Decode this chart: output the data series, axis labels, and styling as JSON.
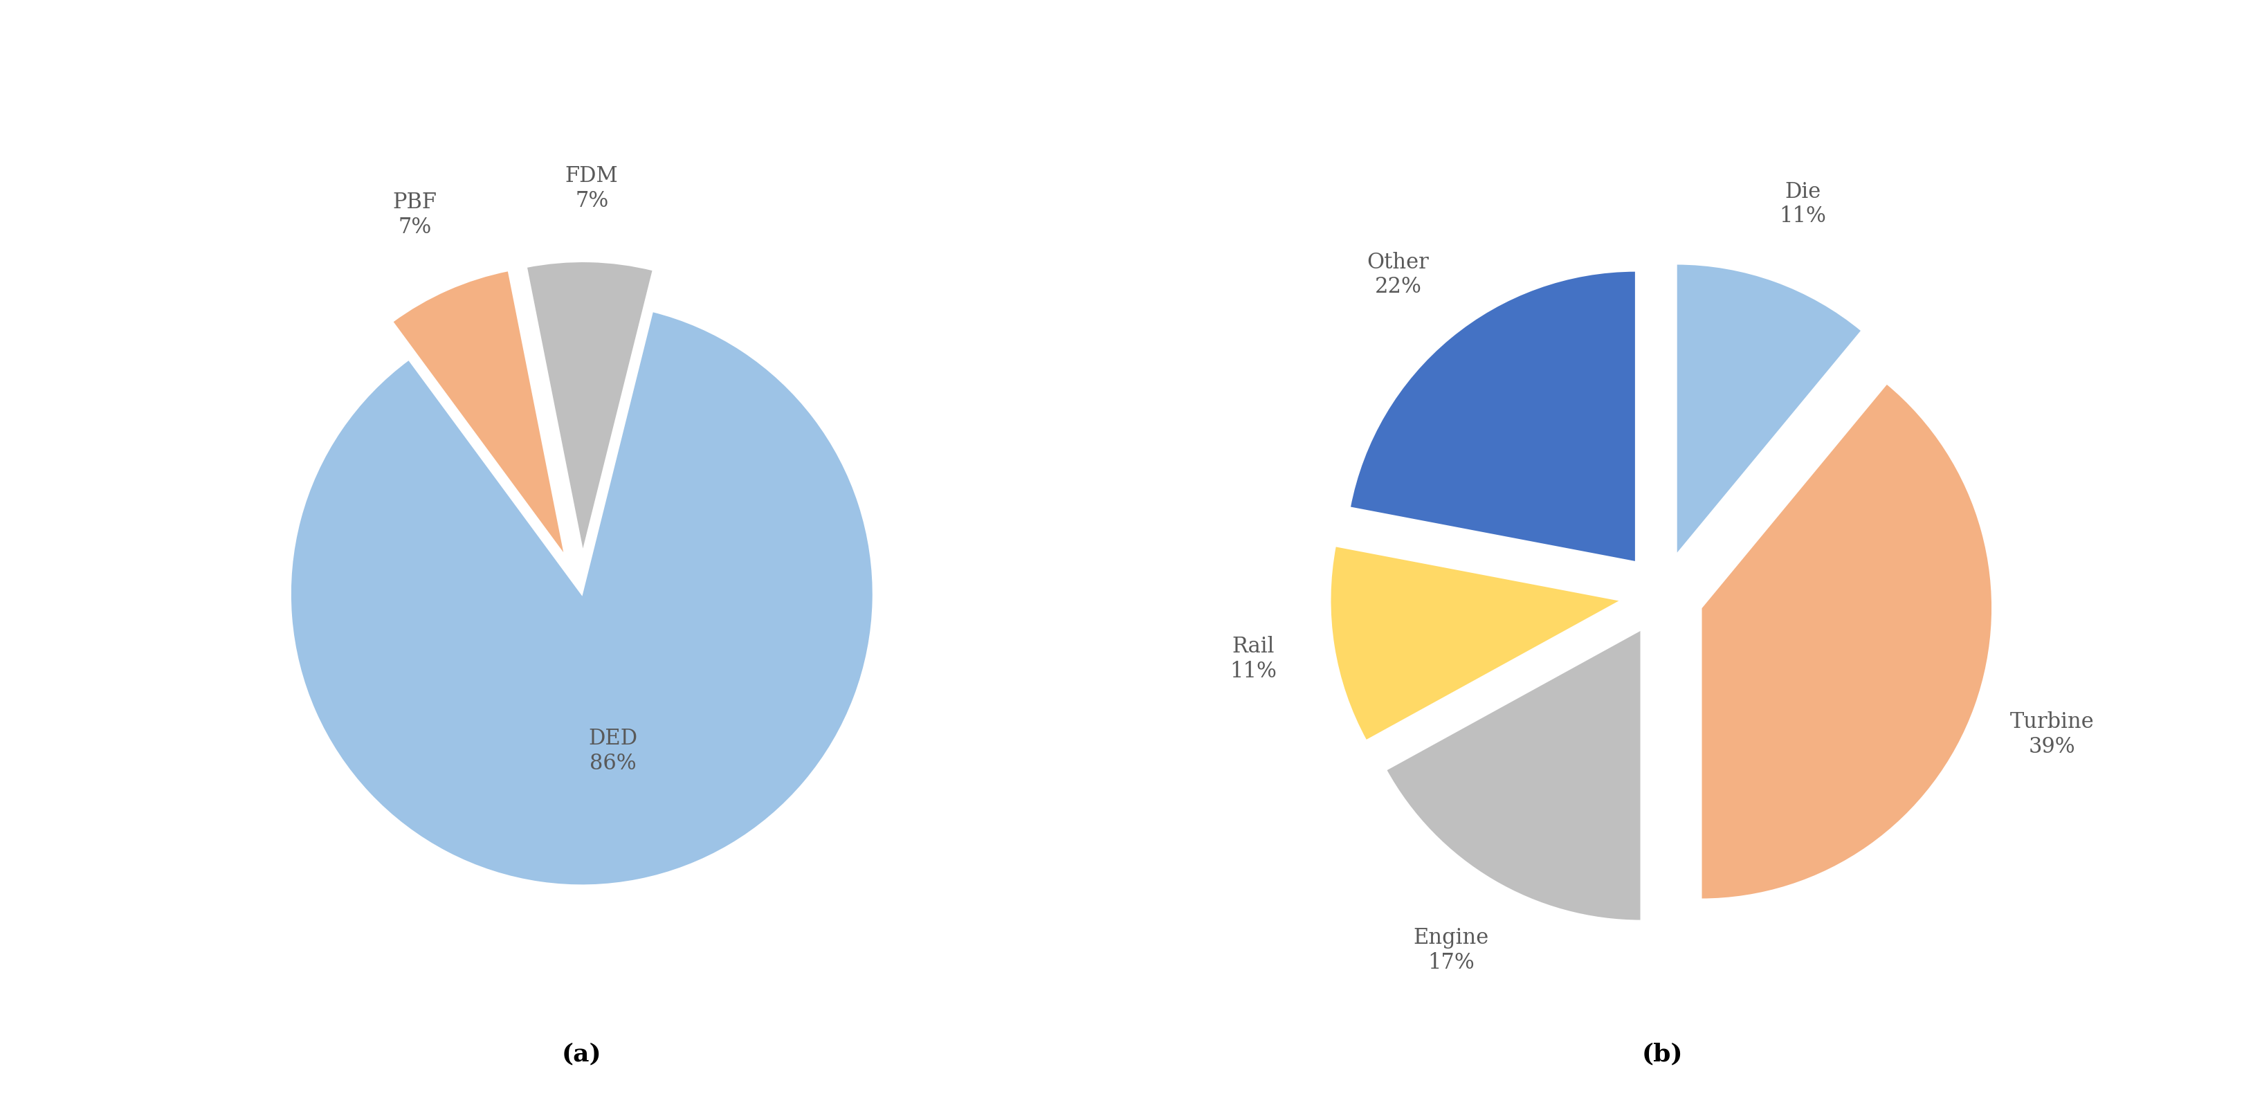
{
  "chart_a": {
    "labels": [
      "DED",
      "PBF",
      "FDM"
    ],
    "values": [
      86,
      7,
      7
    ],
    "colors": [
      "#9dc3e6",
      "#f4b183",
      "#bfbfbf"
    ],
    "explode": [
      0.0,
      0.12,
      0.12
    ],
    "startangle": 76,
    "caption": "(a)",
    "label_positions": {
      "DED": {
        "r": 0.55,
        "label": "DED\n86%"
      },
      "PBF": {
        "r": 1.28,
        "label": "PBF\n7%"
      },
      "FDM": {
        "r": 1.25,
        "label": "FDM\n7%"
      }
    }
  },
  "chart_b": {
    "labels": [
      "Die",
      "Turbine",
      "Engine",
      "Rail",
      "Other"
    ],
    "values": [
      11,
      39,
      17,
      11,
      22
    ],
    "colors": [
      "#9dc3e6",
      "#f4b183",
      "#bfbfbf",
      "#ffd966",
      "#4472c4"
    ],
    "explode": [
      0.12,
      0.12,
      0.12,
      0.12,
      0.12
    ],
    "startangle": 90,
    "caption": "(b)",
    "label_positions": {
      "Die": {
        "r": 1.28,
        "label": "Die\n11%"
      },
      "Turbine": {
        "r": 1.28,
        "label": "Turbine\n39%"
      },
      "Engine": {
        "r": 1.28,
        "label": "Engine\n17%"
      },
      "Rail": {
        "r": 1.28,
        "label": "Rail\n11%"
      },
      "Other": {
        "r": 1.28,
        "label": "Other\n22%"
      }
    }
  },
  "background_color": "#ffffff",
  "text_color": "#595959",
  "font_size_labels": 22,
  "font_size_caption": 26,
  "edge_color": "#ffffff",
  "border_color": "#b0b0b0"
}
